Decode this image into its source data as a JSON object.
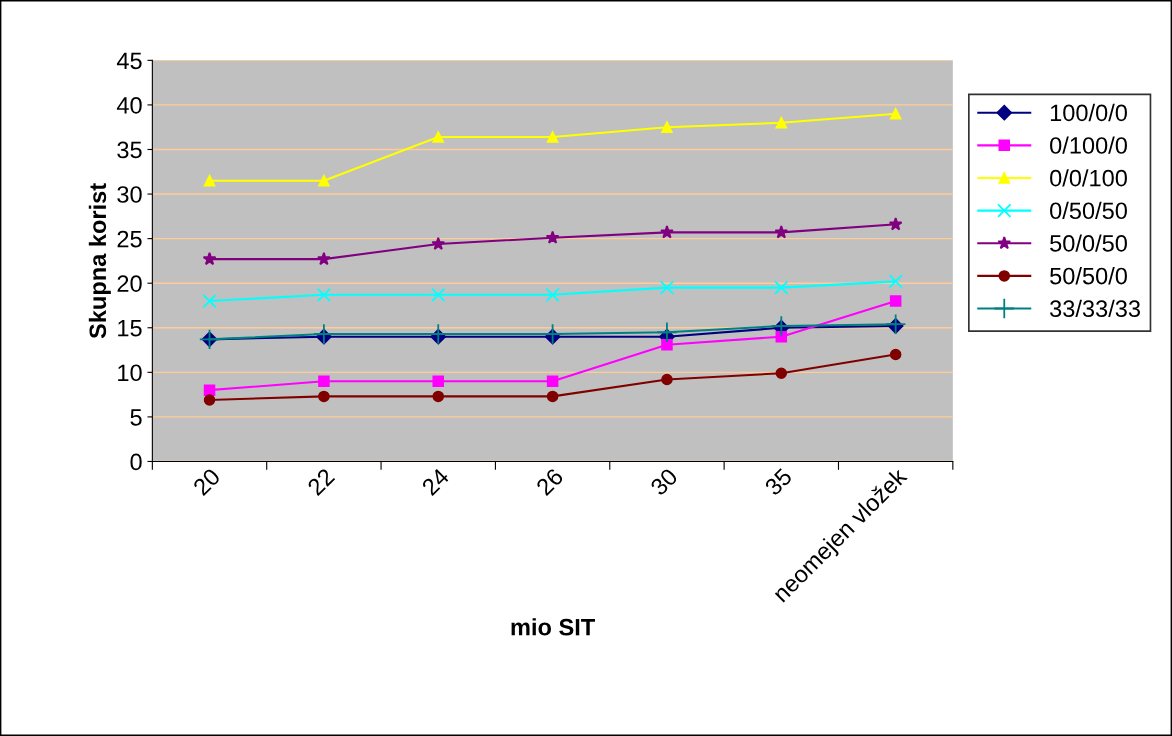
{
  "chart_data": {
    "type": "line",
    "xlabel": "mio SIT",
    "ylabel": "Skupna korist",
    "categories": [
      "20",
      "22",
      "24",
      "26",
      "30",
      "35",
      "neomejen vložek"
    ],
    "ylim": [
      0,
      45
    ],
    "yticks": [
      0,
      5,
      10,
      15,
      20,
      25,
      30,
      35,
      40,
      45
    ],
    "grid": "y",
    "legend": "right",
    "series": [
      {
        "name": "100/0/0",
        "color": "#000080",
        "marker": "diamond",
        "values": [
          13.7,
          14,
          14,
          14,
          14,
          15,
          15.2
        ]
      },
      {
        "name": "0/100/0",
        "color": "#ff00ff",
        "marker": "square",
        "values": [
          8,
          9,
          9,
          9,
          13.1,
          14,
          18
        ]
      },
      {
        "name": "0/0/100",
        "color": "#ffff00",
        "marker": "triangle",
        "values": [
          31.5,
          31.5,
          36.4,
          36.4,
          37.5,
          38,
          39
        ]
      },
      {
        "name": "0/50/50",
        "color": "#00ffff",
        "marker": "cross",
        "values": [
          18,
          18.7,
          18.7,
          18.7,
          19.5,
          19.5,
          20.2
        ]
      },
      {
        "name": "50/0/50",
        "color": "#800080",
        "marker": "star",
        "values": [
          22.7,
          22.7,
          24.4,
          25.1,
          25.7,
          25.7,
          26.6
        ]
      },
      {
        "name": "50/50/0",
        "color": "#800000",
        "marker": "circle",
        "values": [
          6.9,
          7.3,
          7.3,
          7.3,
          9.2,
          9.9,
          12
        ]
      },
      {
        "name": "33/33/33",
        "color": "#008080",
        "marker": "plus",
        "values": [
          13.7,
          14.3,
          14.3,
          14.3,
          14.5,
          15.2,
          15.4
        ]
      }
    ]
  }
}
